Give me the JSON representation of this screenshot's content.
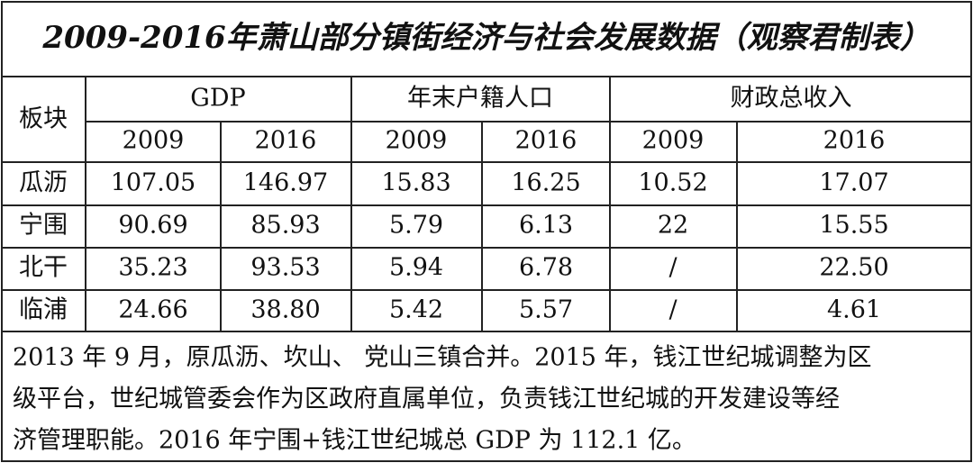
{
  "title": "2009-2016年萧山部分镇街经济与社会发展数据（观察君制表）",
  "table": {
    "corner": "板块",
    "groups": [
      "GDP",
      "年末户籍人口",
      "财政总收入"
    ],
    "years": [
      "2009",
      "2016",
      "2009",
      "2016",
      "2009",
      "2016"
    ],
    "rows": [
      [
        "瓜沥",
        "107.05",
        "146.97",
        "15.83",
        "16.25",
        "10.52",
        "17.07"
      ],
      [
        "宁围",
        "90.69",
        "85.93",
        "5.79",
        "6.13",
        "22",
        "15.55"
      ],
      [
        "北干",
        "35.23",
        "93.53",
        "5.94",
        "6.78",
        "/",
        "22.50"
      ],
      [
        "临浦",
        "24.66",
        "38.80",
        "5.42",
        "5.57",
        "/",
        "4.61"
      ]
    ]
  },
  "note": [
    "2013 年 9 月，原瓜沥、坎山、 党山三镇合并。2015 年，钱江世纪城调整为区",
    "级平台，世纪城管委会作为区政府直属单位，负责钱江世纪城的开发建设等经",
    "济管理职能。2016 年宁围+钱江世纪城总 GDP 为 112.1 亿。"
  ]
}
